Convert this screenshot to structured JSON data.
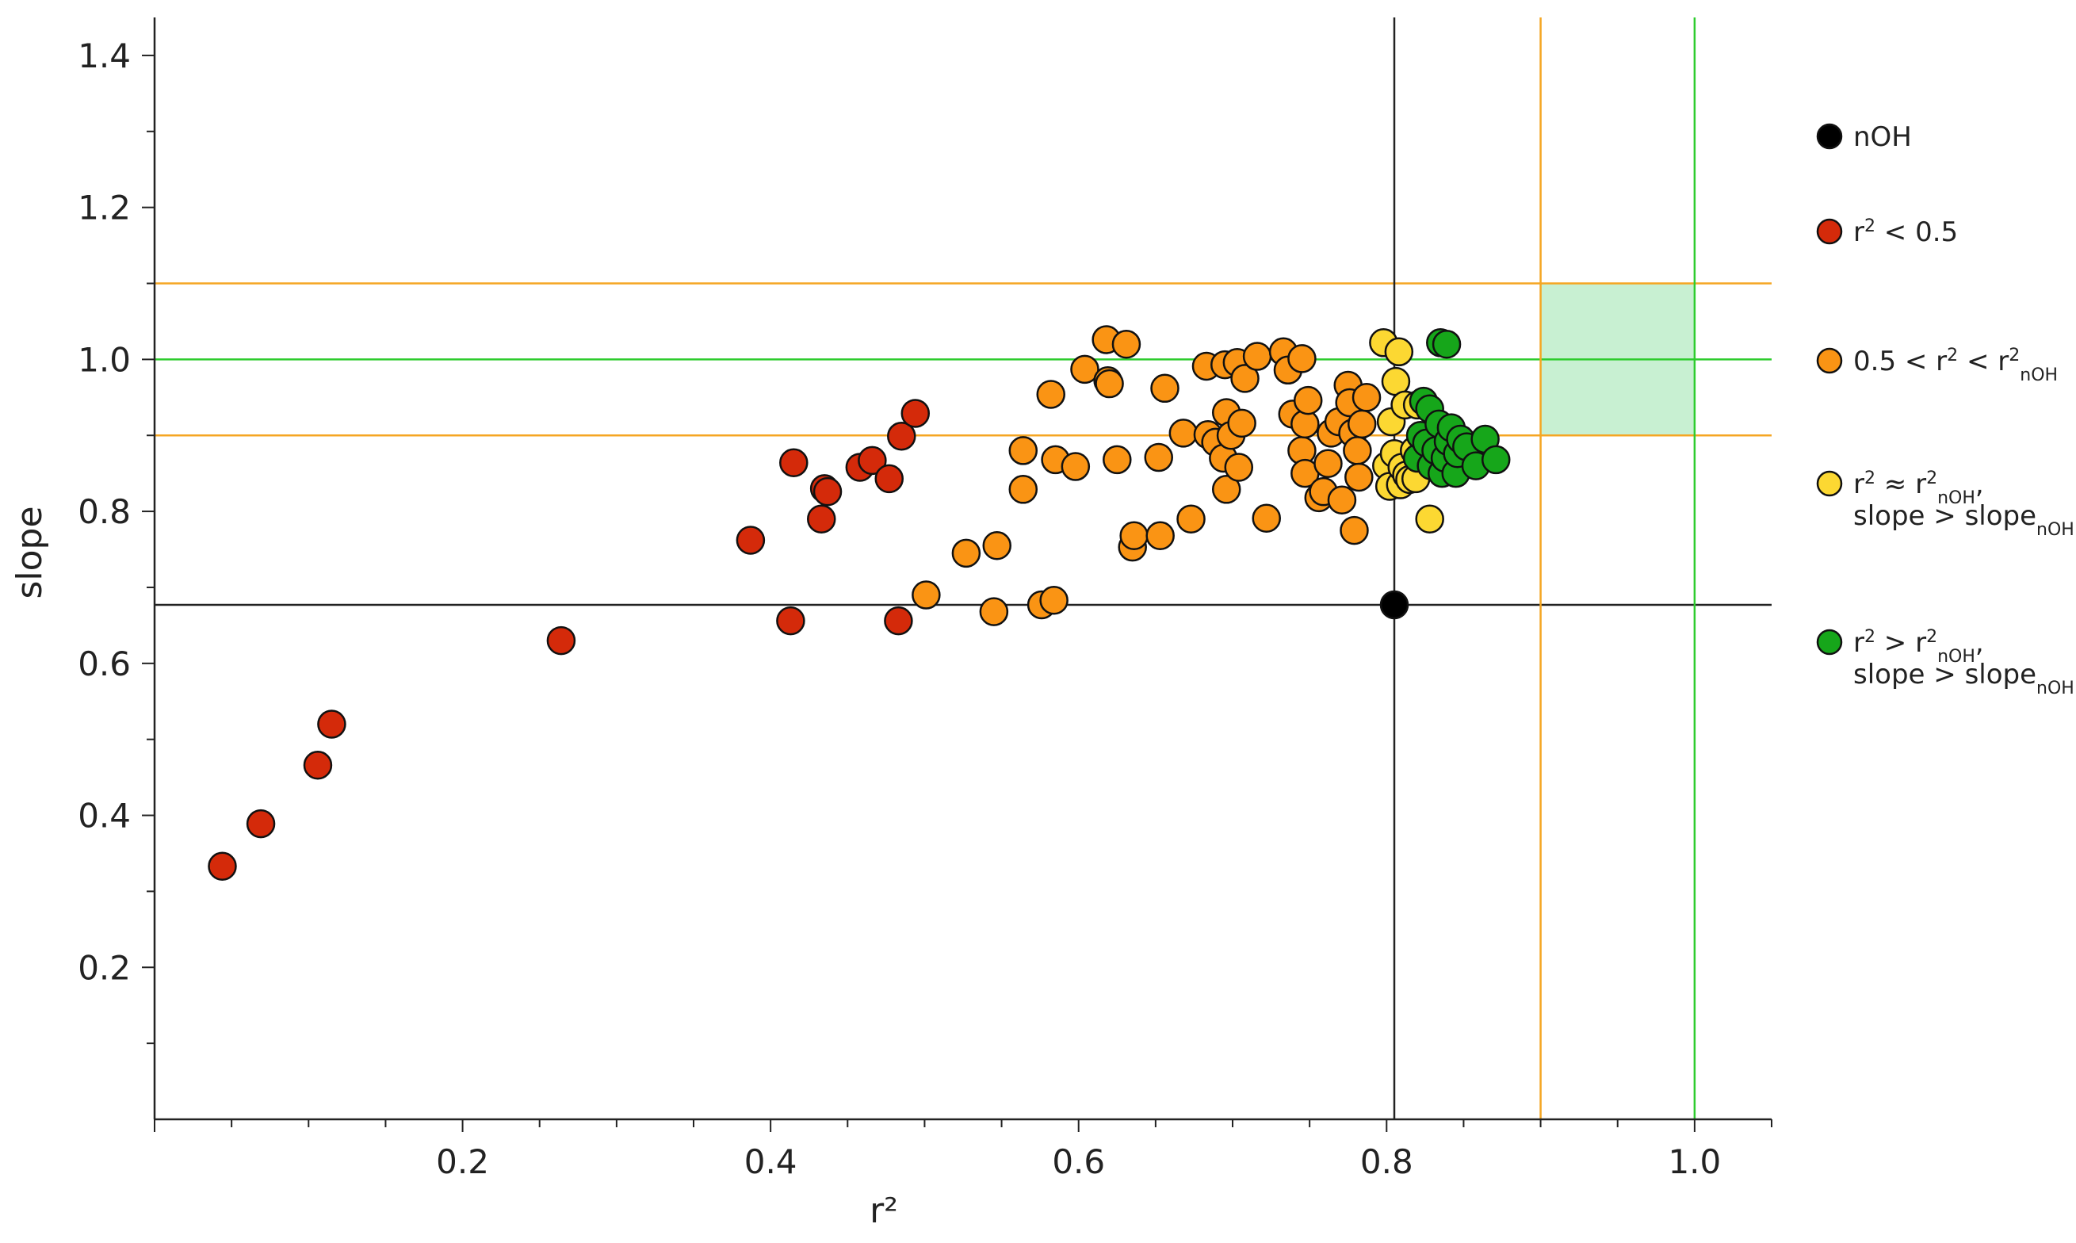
{
  "chart_data": {
    "type": "scatter",
    "xlabel": "r²",
    "ylabel": "slope",
    "xlim": [
      0,
      1.05
    ],
    "ylim": [
      0,
      1.45
    ],
    "x_ticks": [
      {
        "value": 0.2,
        "label": "0.2"
      },
      {
        "value": 0.4,
        "label": "0.4"
      },
      {
        "value": 0.6,
        "label": "0.6"
      },
      {
        "value": 0.8,
        "label": "0.8"
      },
      {
        "value": 1.0,
        "label": "1.0"
      }
    ],
    "y_ticks": [
      {
        "value": 0.2,
        "label": "0.2"
      },
      {
        "value": 0.4,
        "label": "0.4"
      },
      {
        "value": 0.6,
        "label": "0.6"
      },
      {
        "value": 0.8,
        "label": "0.8"
      },
      {
        "value": 1.0,
        "label": "1.0"
      },
      {
        "value": 1.2,
        "label": "1.2"
      },
      {
        "value": 1.4,
        "label": "1.4"
      }
    ],
    "grid": false,
    "legend_position": "right",
    "reference_lines": {
      "horizontal": [
        {
          "y": 1.1,
          "color": "#f5a623"
        },
        {
          "y": 1.0,
          "color": "#2ecc2e"
        },
        {
          "y": 0.9,
          "color": "#f5a623"
        },
        {
          "y": 0.677,
          "color": "#222222"
        }
      ],
      "vertical": [
        {
          "x": 0.805,
          "color": "#222222"
        },
        {
          "x": 0.9,
          "color": "#f5a623"
        },
        {
          "x": 1.0,
          "color": "#2ecc2e"
        }
      ]
    },
    "target_region": {
      "x": [
        0.9,
        1.0
      ],
      "y": [
        0.9,
        1.1
      ],
      "color": "#c8f0d2"
    },
    "series": [
      {
        "name": "nOH",
        "color": "#000000",
        "legend_parts": [
          {
            "t": "nOH"
          }
        ],
        "points": [
          [
            0.805,
            0.677
          ]
        ]
      },
      {
        "name": "r² < 0.5",
        "color": "#d42a0a",
        "legend_parts": [
          {
            "t": "r"
          },
          {
            "t": "2",
            "sup": true
          },
          {
            "t": " < 0.5"
          }
        ],
        "points": [
          [
            0.044,
            0.333
          ],
          [
            0.069,
            0.389
          ],
          [
            0.106,
            0.466
          ],
          [
            0.115,
            0.52
          ],
          [
            0.264,
            0.63
          ],
          [
            0.387,
            0.762
          ],
          [
            0.413,
            0.656
          ],
          [
            0.415,
            0.864
          ],
          [
            0.433,
            0.79
          ],
          [
            0.435,
            0.83
          ],
          [
            0.437,
            0.826
          ],
          [
            0.458,
            0.858
          ],
          [
            0.466,
            0.867
          ],
          [
            0.477,
            0.843
          ],
          [
            0.483,
            0.656
          ],
          [
            0.485,
            0.899
          ],
          [
            0.494,
            0.929
          ]
        ]
      },
      {
        "name": "0.5 < r² < r²nOH",
        "color": "#fa9414",
        "legend_parts": [
          {
            "t": "0.5 < r"
          },
          {
            "t": "2",
            "sup": true
          },
          {
            "t": " < r"
          },
          {
            "t": "2",
            "sup": true
          },
          {
            "t": "nOH",
            "sub": true
          }
        ],
        "points": [
          [
            0.501,
            0.69
          ],
          [
            0.527,
            0.745
          ],
          [
            0.545,
            0.668
          ],
          [
            0.547,
            0.755
          ],
          [
            0.564,
            0.88
          ],
          [
            0.564,
            0.829
          ],
          [
            0.576,
            0.677
          ],
          [
            0.582,
            0.954
          ],
          [
            0.584,
            0.683
          ],
          [
            0.585,
            0.868
          ],
          [
            0.598,
            0.859
          ],
          [
            0.604,
            0.987
          ],
          [
            0.618,
            1.026
          ],
          [
            0.619,
            0.972
          ],
          [
            0.62,
            0.968
          ],
          [
            0.625,
            0.868
          ],
          [
            0.631,
            1.02
          ],
          [
            0.635,
            0.753
          ],
          [
            0.636,
            0.768
          ],
          [
            0.652,
            0.871
          ],
          [
            0.653,
            0.768
          ],
          [
            0.656,
            0.962
          ],
          [
            0.668,
            0.903
          ],
          [
            0.673,
            0.79
          ],
          [
            0.683,
            0.991
          ],
          [
            0.684,
            0.901
          ],
          [
            0.689,
            0.891
          ],
          [
            0.694,
            0.87
          ],
          [
            0.695,
            0.993
          ],
          [
            0.696,
            0.829
          ],
          [
            0.696,
            0.93
          ],
          [
            0.699,
            0.9
          ],
          [
            0.703,
            0.996
          ],
          [
            0.704,
            0.858
          ],
          [
            0.706,
            0.916
          ],
          [
            0.708,
            0.975
          ],
          [
            0.716,
            1.004
          ],
          [
            0.722,
            0.791
          ],
          [
            0.733,
            1.01
          ],
          [
            0.736,
            0.986
          ],
          [
            0.739,
            0.928
          ],
          [
            0.745,
            1.001
          ],
          [
            0.745,
            0.88
          ],
          [
            0.747,
            0.85
          ],
          [
            0.747,
            0.915
          ],
          [
            0.749,
            0.946
          ],
          [
            0.756,
            0.818
          ],
          [
            0.759,
            0.826
          ],
          [
            0.762,
            0.863
          ],
          [
            0.764,
            0.903
          ],
          [
            0.769,
            0.918
          ],
          [
            0.771,
            0.815
          ],
          [
            0.775,
            0.966
          ],
          [
            0.776,
            0.943
          ],
          [
            0.778,
            0.903
          ],
          [
            0.779,
            0.775
          ],
          [
            0.781,
            0.88
          ],
          [
            0.782,
            0.845
          ],
          [
            0.784,
            0.915
          ],
          [
            0.787,
            0.95
          ]
        ]
      },
      {
        "name": "r² ≈ r²nOH, slope > slopenOH",
        "color": "#fcd832",
        "legend_parts": [
          {
            "t": "r"
          },
          {
            "t": "2",
            "sup": true
          },
          {
            "t": " ≈ r"
          },
          {
            "t": "2",
            "sup": true
          },
          {
            "t": "nOH",
            "sub": true
          },
          {
            "t": ","
          }
        ],
        "legend_parts2": [
          {
            "t": "slope > slope"
          },
          {
            "t": "nOH",
            "sub": true
          }
        ],
        "points": [
          [
            0.798,
            1.022
          ],
          [
            0.8,
            0.86
          ],
          [
            0.802,
            0.833
          ],
          [
            0.803,
            0.918
          ],
          [
            0.805,
            0.876
          ],
          [
            0.806,
            0.971
          ],
          [
            0.808,
            1.01
          ],
          [
            0.809,
            0.835
          ],
          [
            0.81,
            0.858
          ],
          [
            0.812,
            0.94
          ],
          [
            0.813,
            0.848
          ],
          [
            0.815,
            0.842
          ],
          [
            0.818,
            0.88
          ],
          [
            0.819,
            0.843
          ],
          [
            0.82,
            0.94
          ],
          [
            0.828,
            0.79
          ]
        ]
      },
      {
        "name": "r² > r²nOH, slope > slopenOH",
        "color": "#16a61a",
        "legend_parts": [
          {
            "t": "r"
          },
          {
            "t": "2",
            "sup": true
          },
          {
            "t": " > r"
          },
          {
            "t": "2",
            "sup": true
          },
          {
            "t": "nOH",
            "sub": true
          },
          {
            "t": ","
          }
        ],
        "legend_parts2": [
          {
            "t": "slope > slope"
          },
          {
            "t": "nOH",
            "sub": true
          }
        ],
        "points": [
          [
            0.82,
            0.87
          ],
          [
            0.822,
            0.9
          ],
          [
            0.824,
            0.945
          ],
          [
            0.826,
            0.89
          ],
          [
            0.828,
            0.935
          ],
          [
            0.829,
            0.86
          ],
          [
            0.832,
            0.88
          ],
          [
            0.834,
            0.915
          ],
          [
            0.835,
            1.022
          ],
          [
            0.836,
            0.85
          ],
          [
            0.838,
            0.87
          ],
          [
            0.839,
            1.02
          ],
          [
            0.84,
            0.892
          ],
          [
            0.842,
            0.91
          ],
          [
            0.845,
            0.85
          ],
          [
            0.846,
            0.876
          ],
          [
            0.848,
            0.895
          ],
          [
            0.852,
            0.885
          ],
          [
            0.858,
            0.86
          ],
          [
            0.864,
            0.895
          ],
          [
            0.871,
            0.868
          ]
        ]
      }
    ]
  }
}
